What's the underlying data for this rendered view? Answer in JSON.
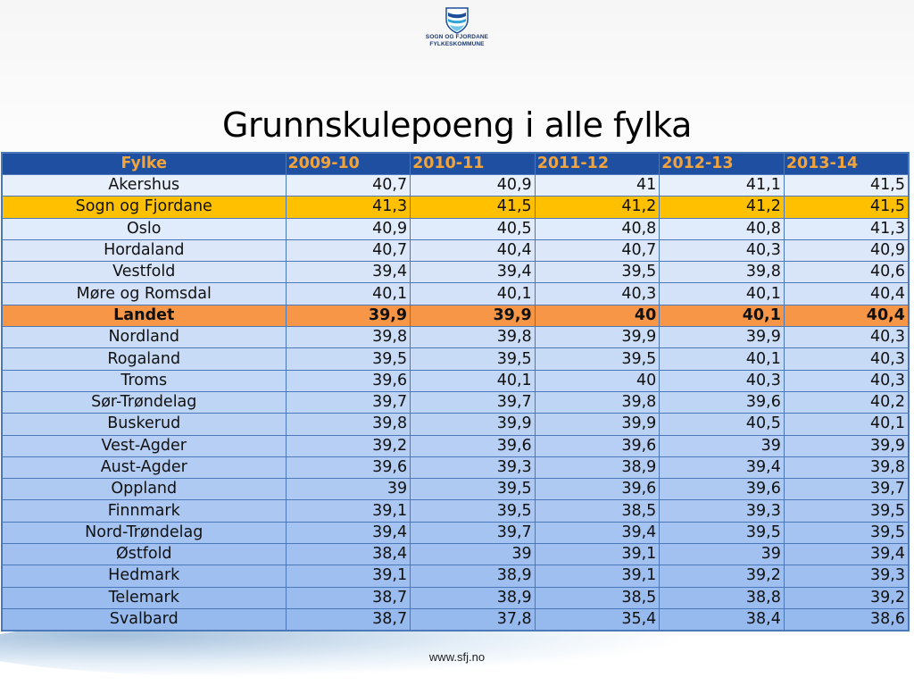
{
  "logo": {
    "line1": "SOGN OG FJORDANE",
    "line2": "FYLKESKOMMUNE",
    "colors": [
      "#1a4f9c",
      "#2ea3d8",
      "#74c6ea"
    ]
  },
  "title": "Grunnskulepoeng i alle fylka",
  "table": {
    "headers": [
      "Fylke",
      "2009-10",
      "2010-11",
      "2011-12",
      "2012-13",
      "2013-14"
    ],
    "rows": [
      {
        "name": "Akershus",
        "values": [
          "40,7",
          "40,9",
          "41",
          "41,1",
          "41,5"
        ],
        "highlight": ""
      },
      {
        "name": "Sogn og Fjordane",
        "values": [
          "41,3",
          "41,5",
          "41,2",
          "41,2",
          "41,5"
        ],
        "highlight": "yellow"
      },
      {
        "name": "Oslo",
        "values": [
          "40,9",
          "40,5",
          "40,8",
          "40,8",
          "41,3"
        ],
        "highlight": ""
      },
      {
        "name": "Hordaland",
        "values": [
          "40,7",
          "40,4",
          "40,7",
          "40,3",
          "40,9"
        ],
        "highlight": ""
      },
      {
        "name": "Vestfold",
        "values": [
          "39,4",
          "39,4",
          "39,5",
          "39,8",
          "40,6"
        ],
        "highlight": ""
      },
      {
        "name": "Møre og Romsdal",
        "values": [
          "40,1",
          "40,1",
          "40,3",
          "40,1",
          "40,4"
        ],
        "highlight": ""
      },
      {
        "name": "Landet",
        "values": [
          "39,9",
          "39,9",
          "40",
          "40,1",
          "40,4"
        ],
        "highlight": "orange"
      },
      {
        "name": "Nordland",
        "values": [
          "39,8",
          "39,8",
          "39,9",
          "39,9",
          "40,3"
        ],
        "highlight": ""
      },
      {
        "name": "Rogaland",
        "values": [
          "39,5",
          "39,5",
          "39,5",
          "40,1",
          "40,3"
        ],
        "highlight": ""
      },
      {
        "name": "Troms",
        "values": [
          "39,6",
          "40,1",
          "40",
          "40,3",
          "40,3"
        ],
        "highlight": ""
      },
      {
        "name": "Sør-Trøndelag",
        "values": [
          "39,7",
          "39,7",
          "39,8",
          "39,6",
          "40,2"
        ],
        "highlight": ""
      },
      {
        "name": "Buskerud",
        "values": [
          "39,8",
          "39,9",
          "39,9",
          "40,5",
          "40,1"
        ],
        "highlight": ""
      },
      {
        "name": "Vest-Agder",
        "values": [
          "39,2",
          "39,6",
          "39,6",
          "39",
          "39,9"
        ],
        "highlight": ""
      },
      {
        "name": "Aust-Agder",
        "values": [
          "39,6",
          "39,3",
          "38,9",
          "39,4",
          "39,8"
        ],
        "highlight": ""
      },
      {
        "name": "Oppland",
        "values": [
          "39",
          "39,5",
          "39,6",
          "39,6",
          "39,7"
        ],
        "highlight": ""
      },
      {
        "name": "Finnmark",
        "values": [
          "39,1",
          "39,5",
          "38,5",
          "39,3",
          "39,5"
        ],
        "highlight": ""
      },
      {
        "name": "Nord-Trøndelag",
        "values": [
          "39,4",
          "39,7",
          "39,4",
          "39,5",
          "39,5"
        ],
        "highlight": ""
      },
      {
        "name": "Østfold",
        "values": [
          "38,4",
          "39",
          "39,1",
          "39",
          "39,4"
        ],
        "highlight": ""
      },
      {
        "name": "Hedmark",
        "values": [
          "39,1",
          "38,9",
          "39,1",
          "39,2",
          "39,3"
        ],
        "highlight": ""
      },
      {
        "name": "Telemark",
        "values": [
          "38,7",
          "38,9",
          "38,5",
          "38,8",
          "39,2"
        ],
        "highlight": ""
      },
      {
        "name": "Svalbard",
        "values": [
          "38,7",
          "37,8",
          "35,4",
          "38,4",
          "38,6"
        ],
        "highlight": ""
      }
    ]
  },
  "footer": "www.sfj.no"
}
